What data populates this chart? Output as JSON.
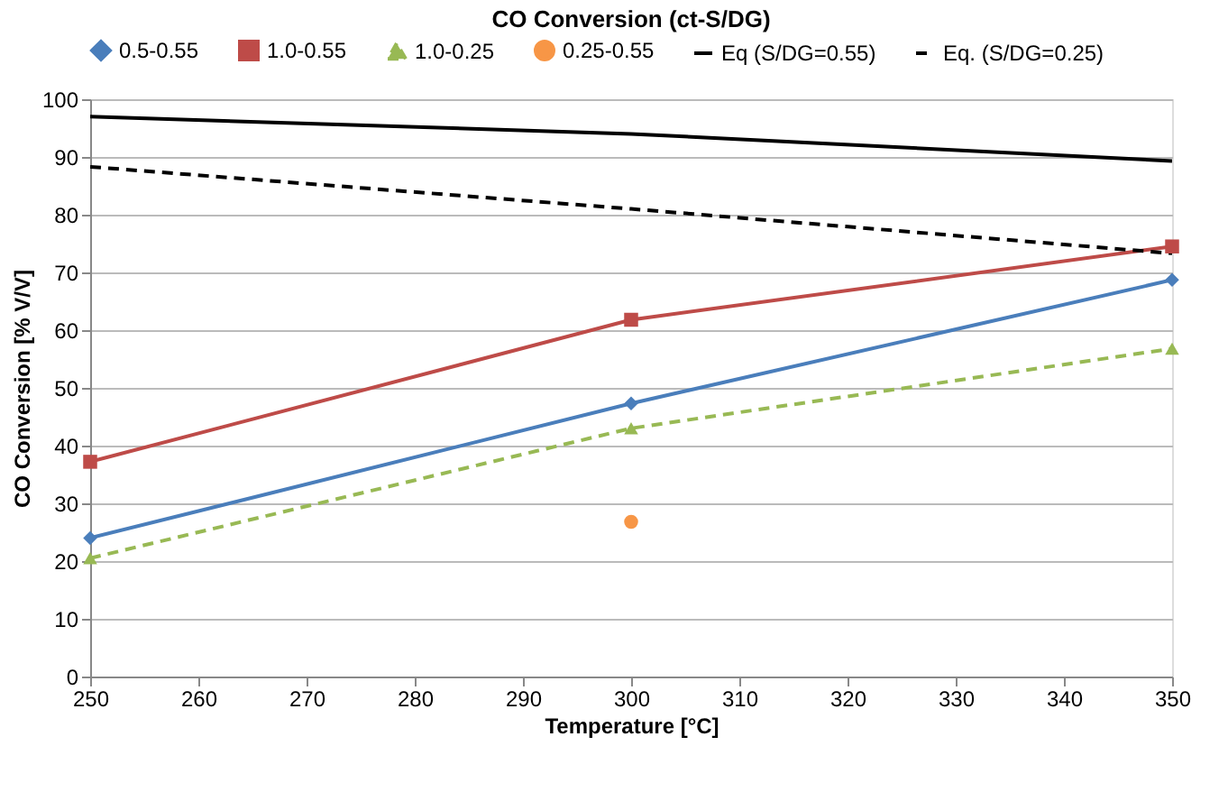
{
  "chart_data": {
    "type": "line",
    "title": "CO Conversion (ct-S/DG)",
    "xlabel": "Temperature [°C]",
    "ylabel": "CO Conversion [% V/V]",
    "x": [
      250,
      300,
      350
    ],
    "xlim": [
      250,
      350
    ],
    "xticks": [
      250,
      260,
      270,
      280,
      290,
      300,
      310,
      320,
      330,
      340,
      350
    ],
    "ylim": [
      0,
      100
    ],
    "yticks": [
      0,
      10,
      20,
      30,
      40,
      50,
      60,
      70,
      80,
      90,
      100
    ],
    "grid": "y",
    "legend": "top",
    "series": [
      {
        "name": "0.5-0.55",
        "color": "#4a7ebb",
        "values": [
          24.0,
          47.3,
          68.7
        ],
        "marker": "diamond",
        "line_style": "solid"
      },
      {
        "name": "1.0-0.55",
        "color": "#be4b48",
        "values": [
          37.2,
          61.8,
          74.5
        ],
        "marker": "square",
        "line_style": "solid"
      },
      {
        "name": "1.0-0.25",
        "color": "#98b954",
        "values": [
          20.5,
          43.0,
          56.8
        ],
        "marker": "triangle",
        "line_style": "dashed"
      },
      {
        "name": "0.25-0.55",
        "type": "scatter",
        "color": "#f79646",
        "x": [
          300
        ],
        "values": [
          26.8
        ],
        "marker": "circle"
      },
      {
        "name": "Eq (S/DG=0.55)",
        "color": "#000000",
        "values": [
          97.0,
          94.0,
          89.3
        ],
        "marker": "none",
        "line_style": "solid"
      },
      {
        "name": "Eq. (S/DG=0.25)",
        "color": "#000000",
        "values": [
          88.3,
          81.0,
          73.3
        ],
        "marker": "none",
        "line_style": "dashed"
      }
    ]
  }
}
